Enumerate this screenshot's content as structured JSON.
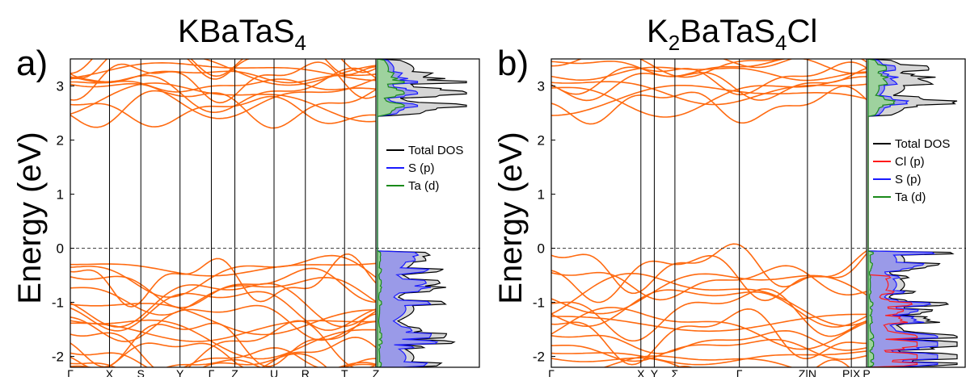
{
  "figure": {
    "panel_letters": [
      "a)",
      "b)"
    ]
  },
  "colors": {
    "band": "#ff6a10",
    "total_dos": "#000000",
    "total_fill": "#d6d6d6",
    "s_p": "#1a1aff",
    "s_fill": "#9a9ae8",
    "ta_d": "#1a8a1a",
    "cl_p": "#ff1a1a",
    "frame": "#000000",
    "fermi": "#444444"
  },
  "chart_data": [
    {
      "type": "line",
      "panel": "a)",
      "title_main": "KBaTaS",
      "title_sub": "4",
      "title_tail": "",
      "ylabel": "Energy (eV)",
      "ylim": [
        -2.2,
        3.5
      ],
      "yticks": [
        "-2",
        "-1",
        "0",
        "1",
        "2",
        "3"
      ],
      "grid": false,
      "fermi_level": 0,
      "legend_position": "right, inside DOS panel",
      "kpath": [
        {
          "label": "Γ",
          "x": 0.0
        },
        {
          "label": "X",
          "x": 0.5
        },
        {
          "label": "S",
          "x": 0.9
        },
        {
          "label": "Y",
          "x": 1.4
        },
        {
          "label": "Γ",
          "x": 1.8
        },
        {
          "label": "Z",
          "x": 2.1
        },
        {
          "label": "U",
          "x": 2.6
        },
        {
          "label": "R",
          "x": 3.0
        },
        {
          "label": "T",
          "x": 3.5
        },
        {
          "label": "Z",
          "x": 3.9
        }
      ],
      "conduction_bands_eV": {
        "minimum": 2.4,
        "maximum_shown": 3.5,
        "count_shown": 12
      },
      "valence_bands_eV": {
        "maximum": 0.0,
        "minimum_shown": -2.2,
        "count_shown": 18
      },
      "dos_legend": [
        {
          "name": "Total DOS",
          "color": "#000000"
        },
        {
          "name": "S (p)",
          "color": "#1a1aff"
        },
        {
          "name": "Ta (d)",
          "color": "#1a8a1a"
        }
      ]
    },
    {
      "type": "line",
      "panel": "b)",
      "title_main": "K",
      "title_sub": "2",
      "title_mid": "BaTaS",
      "title_sub2": "4",
      "title_tail": "Cl",
      "ylabel": "Energy (eV)",
      "ylim": [
        -2.2,
        3.5
      ],
      "yticks": [
        "-2",
        "-1",
        "0",
        "1",
        "2",
        "3"
      ],
      "grid": false,
      "fermi_level": 0,
      "legend_position": "right, inside DOS panel",
      "kpath": [
        {
          "label": "Γ",
          "x": 0.0
        },
        {
          "label": "X",
          "x": 1.0
        },
        {
          "label": "Y",
          "x": 1.15
        },
        {
          "label": "Σ",
          "x": 1.38
        },
        {
          "label": "Γ",
          "x": 2.1
        },
        {
          "label": "Z|N",
          "x": 2.86
        },
        {
          "label": "P|X",
          "x": 3.35
        },
        {
          "label": "P",
          "x": 3.52
        }
      ],
      "conduction_bands_eV": {
        "minimum": 2.5,
        "maximum_shown": 3.5,
        "count_shown": 10
      },
      "valence_bands_eV": {
        "maximum": 0.0,
        "minimum_shown": -2.2,
        "count_shown": 16
      },
      "dos_legend": [
        {
          "name": "Total DOS",
          "color": "#000000"
        },
        {
          "name": "Cl (p)",
          "color": "#ff1a1a"
        },
        {
          "name": "S (p)",
          "color": "#1a1aff"
        },
        {
          "name": "Ta (d)",
          "color": "#1a8a1a"
        }
      ]
    }
  ]
}
